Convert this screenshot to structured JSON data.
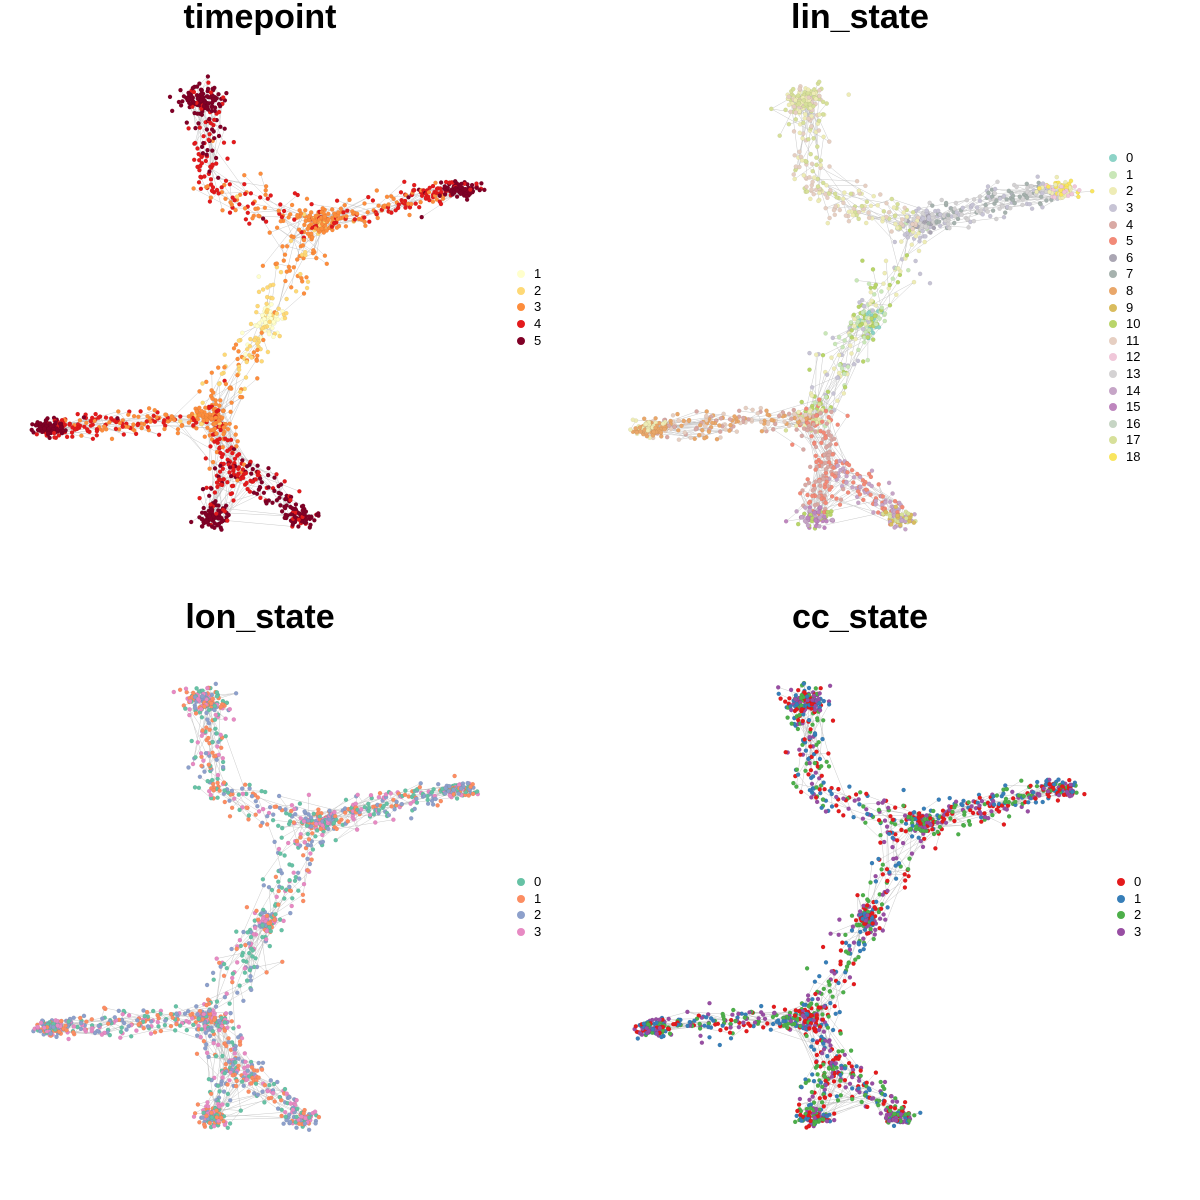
{
  "chart_data": [
    {
      "type": "scatter",
      "title": "timepoint",
      "legend": "right",
      "grid": false,
      "categories": [
        "1",
        "2",
        "3",
        "4",
        "5"
      ],
      "colors": [
        "#FFFFCC",
        "#FED976",
        "#FD8D3C",
        "#E31A1C",
        "#800026"
      ],
      "coloring": "timepoint"
    },
    {
      "type": "scatter",
      "title": "lin_state",
      "legend": "right",
      "grid": false,
      "categories": [
        "0",
        "1",
        "2",
        "3",
        "4",
        "5",
        "6",
        "7",
        "8",
        "9",
        "10",
        "11",
        "12",
        "13",
        "14",
        "15",
        "16",
        "17",
        "18"
      ],
      "colors": [
        "#8DD3C7",
        "#C9E7B8",
        "#EEECB6",
        "#C7C4D5",
        "#D9A9A4",
        "#F28A78",
        "#AAA6B3",
        "#A6B2AE",
        "#E9A76A",
        "#D9BC5E",
        "#B9D56A",
        "#E6CFC2",
        "#F0C7D9",
        "#D4D2D3",
        "#C6A5C7",
        "#BE86BE",
        "#C6D5C4",
        "#D7E09A",
        "#F9E55F"
      ],
      "coloring": "lin_state"
    },
    {
      "type": "scatter",
      "title": "lon_state",
      "legend": "right",
      "grid": false,
      "categories": [
        "0",
        "1",
        "2",
        "3"
      ],
      "colors": [
        "#66C2A5",
        "#FC8D62",
        "#8DA0CB",
        "#E78AC3"
      ],
      "coloring": "random"
    },
    {
      "type": "scatter",
      "title": "cc_state",
      "legend": "right",
      "grid": false,
      "categories": [
        "0",
        "1",
        "2",
        "3"
      ],
      "colors": [
        "#E41A1C",
        "#377EB8",
        "#4DAF4A",
        "#984EA3"
      ],
      "coloring": "random"
    }
  ]
}
